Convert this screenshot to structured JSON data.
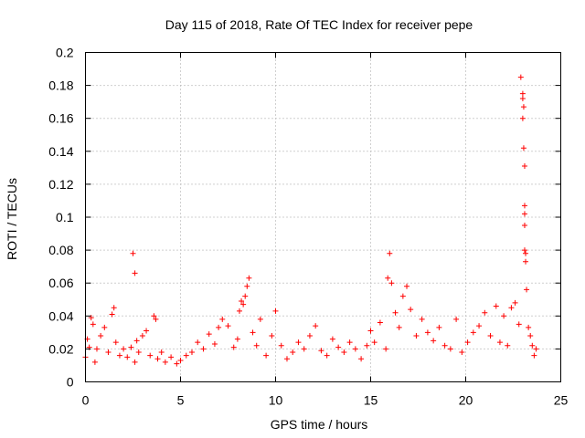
{
  "chart_data": {
    "type": "scatter",
    "title": "Day 115 of 2018, Rate Of TEC Index for receiver pepe",
    "xlabel": "GPS time / hours",
    "ylabel": "ROTI / TECUs",
    "xlim": [
      0,
      25
    ],
    "ylim": [
      0,
      0.2
    ],
    "x_ticks": [
      0,
      5,
      10,
      15,
      20,
      25
    ],
    "x_tick_labels": [
      "0",
      "5",
      "10",
      "15",
      "20",
      "25"
    ],
    "y_ticks": [
      0,
      0.02,
      0.04,
      0.06,
      0.08,
      0.1,
      0.12,
      0.14,
      0.16,
      0.18,
      0.2
    ],
    "y_tick_labels": [
      "0",
      "0.02",
      "0.04",
      "0.06",
      "0.08",
      "0.1",
      "0.12",
      "0.14",
      "0.16",
      "0.18",
      "0.2"
    ],
    "grid": true,
    "marker": "+",
    "color": "#ff0000",
    "series": [
      {
        "name": "ROTI",
        "x": [
          0.0,
          0.1,
          0.2,
          0.3,
          0.4,
          0.5,
          0.6,
          0.8,
          1.0,
          1.2,
          1.4,
          1.5,
          1.6,
          1.8,
          2.0,
          2.2,
          2.4,
          2.5,
          2.6,
          2.6,
          2.7,
          2.8,
          3.0,
          3.2,
          3.4,
          3.6,
          3.7,
          3.8,
          4.0,
          4.2,
          4.5,
          4.8,
          5.0,
          5.3,
          5.6,
          5.9,
          6.2,
          6.5,
          6.8,
          7.0,
          7.2,
          7.5,
          7.8,
          8.0,
          8.1,
          8.2,
          8.3,
          8.4,
          8.5,
          8.6,
          8.8,
          9.0,
          9.2,
          9.5,
          9.8,
          10.0,
          10.3,
          10.6,
          10.9,
          11.2,
          11.5,
          11.8,
          12.1,
          12.4,
          12.7,
          13.0,
          13.3,
          13.6,
          13.9,
          14.2,
          14.5,
          14.8,
          15.0,
          15.2,
          15.5,
          15.8,
          15.9,
          16.0,
          16.1,
          16.3,
          16.5,
          16.7,
          16.9,
          17.1,
          17.4,
          17.7,
          18.0,
          18.3,
          18.6,
          18.9,
          19.2,
          19.5,
          19.8,
          20.1,
          20.4,
          20.7,
          21.0,
          21.3,
          21.6,
          21.8,
          22.0,
          22.2,
          22.4,
          22.6,
          22.8,
          22.9,
          23.0,
          23.0,
          23.0,
          23.05,
          23.05,
          23.1,
          23.1,
          23.1,
          23.1,
          23.1,
          23.15,
          23.15,
          23.2,
          23.3,
          23.4,
          23.5,
          23.6,
          23.7
        ],
        "y": [
          0.015,
          0.026,
          0.021,
          0.039,
          0.035,
          0.012,
          0.02,
          0.028,
          0.033,
          0.018,
          0.041,
          0.045,
          0.024,
          0.016,
          0.02,
          0.015,
          0.021,
          0.078,
          0.066,
          0.012,
          0.025,
          0.018,
          0.028,
          0.031,
          0.016,
          0.04,
          0.038,
          0.014,
          0.018,
          0.012,
          0.015,
          0.011,
          0.013,
          0.016,
          0.018,
          0.024,
          0.02,
          0.029,
          0.023,
          0.033,
          0.038,
          0.034,
          0.021,
          0.026,
          0.043,
          0.049,
          0.047,
          0.052,
          0.058,
          0.063,
          0.03,
          0.022,
          0.038,
          0.016,
          0.028,
          0.043,
          0.022,
          0.014,
          0.018,
          0.024,
          0.02,
          0.028,
          0.034,
          0.019,
          0.016,
          0.026,
          0.021,
          0.018,
          0.024,
          0.02,
          0.014,
          0.022,
          0.031,
          0.024,
          0.036,
          0.02,
          0.063,
          0.078,
          0.06,
          0.042,
          0.033,
          0.052,
          0.058,
          0.044,
          0.028,
          0.038,
          0.03,
          0.025,
          0.033,
          0.022,
          0.02,
          0.038,
          0.018,
          0.024,
          0.03,
          0.034,
          0.042,
          0.028,
          0.046,
          0.024,
          0.04,
          0.022,
          0.045,
          0.048,
          0.035,
          0.185,
          0.172,
          0.175,
          0.16,
          0.167,
          0.142,
          0.131,
          0.107,
          0.102,
          0.095,
          0.08,
          0.073,
          0.078,
          0.056,
          0.033,
          0.028,
          0.022,
          0.016,
          0.02
        ]
      }
    ]
  }
}
